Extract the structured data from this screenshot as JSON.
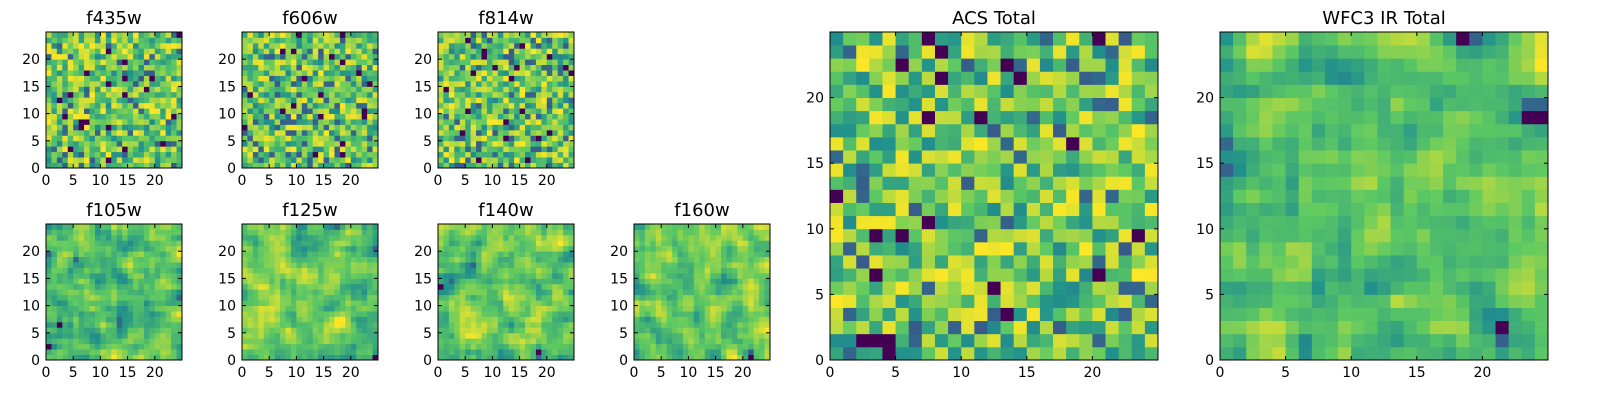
{
  "figure_title": "",
  "colormap": {
    "name": "viridis",
    "stops": [
      "#440154",
      "#3b528b",
      "#21918c",
      "#5ec962",
      "#fde725"
    ]
  },
  "chart_data": [
    {
      "id": "f435w",
      "title": "f435w",
      "type": "heatmap",
      "grid_size": 25,
      "seed": 11,
      "xticks": [
        0,
        5,
        10,
        15,
        20
      ],
      "xtick_labels": [
        "0",
        "5",
        "10",
        "15",
        "20"
      ],
      "yticks": [
        0,
        5,
        10,
        15,
        20
      ],
      "ytick_labels": [
        "0",
        "5",
        "10",
        "15",
        "20"
      ],
      "xlim": [
        0,
        25
      ],
      "ylim": [
        0,
        25
      ],
      "value_range": [
        0,
        1
      ]
    },
    {
      "id": "f606w",
      "title": "f606w",
      "type": "heatmap",
      "grid_size": 25,
      "seed": 23,
      "xticks": [
        0,
        5,
        10,
        15,
        20
      ],
      "xtick_labels": [
        "0",
        "5",
        "10",
        "15",
        "20"
      ],
      "yticks": [
        0,
        5,
        10,
        15,
        20
      ],
      "ytick_labels": [
        "0",
        "5",
        "10",
        "15",
        "20"
      ],
      "xlim": [
        0,
        25
      ],
      "ylim": [
        0,
        25
      ],
      "value_range": [
        0,
        1
      ]
    },
    {
      "id": "f814w",
      "title": "f814w",
      "type": "heatmap",
      "grid_size": 25,
      "seed": 37,
      "xticks": [
        0,
        5,
        10,
        15,
        20
      ],
      "xtick_labels": [
        "0",
        "5",
        "10",
        "15",
        "20"
      ],
      "yticks": [
        0,
        5,
        10,
        15,
        20
      ],
      "ytick_labels": [
        "0",
        "5",
        "10",
        "15",
        "20"
      ],
      "xlim": [
        0,
        25
      ],
      "ylim": [
        0,
        25
      ],
      "value_range": [
        0,
        1
      ]
    },
    {
      "id": "f105w",
      "title": "f105w",
      "type": "heatmap",
      "grid_size": 25,
      "seed": 41,
      "xticks": [
        0,
        5,
        10,
        15,
        20
      ],
      "xtick_labels": [
        "0",
        "5",
        "10",
        "15",
        "20"
      ],
      "yticks": [
        0,
        5,
        10,
        15,
        20
      ],
      "ytick_labels": [
        "0",
        "5",
        "10",
        "15",
        "20"
      ],
      "xlim": [
        0,
        25
      ],
      "ylim": [
        0,
        25
      ],
      "value_range": [
        0,
        1
      ]
    },
    {
      "id": "f125w",
      "title": "f125w",
      "type": "heatmap",
      "grid_size": 25,
      "seed": 53,
      "xticks": [
        0,
        5,
        10,
        15,
        20
      ],
      "xtick_labels": [
        "0",
        "5",
        "10",
        "15",
        "20"
      ],
      "yticks": [
        0,
        5,
        10,
        15,
        20
      ],
      "ytick_labels": [
        "0",
        "5",
        "10",
        "15",
        "20"
      ],
      "xlim": [
        0,
        25
      ],
      "ylim": [
        0,
        25
      ],
      "value_range": [
        0,
        1
      ]
    },
    {
      "id": "f140w",
      "title": "f140w",
      "type": "heatmap",
      "grid_size": 25,
      "seed": 67,
      "xticks": [
        0,
        5,
        10,
        15,
        20
      ],
      "xtick_labels": [
        "0",
        "5",
        "10",
        "15",
        "20"
      ],
      "yticks": [
        0,
        5,
        10,
        15,
        20
      ],
      "ytick_labels": [
        "0",
        "5",
        "10",
        "15",
        "20"
      ],
      "xlim": [
        0,
        25
      ],
      "ylim": [
        0,
        25
      ],
      "value_range": [
        0,
        1
      ]
    },
    {
      "id": "f160w",
      "title": "f160w",
      "type": "heatmap",
      "grid_size": 25,
      "seed": 79,
      "xticks": [
        0,
        5,
        10,
        15,
        20
      ],
      "xtick_labels": [
        "0",
        "5",
        "10",
        "15",
        "20"
      ],
      "yticks": [
        0,
        5,
        10,
        15,
        20
      ],
      "ytick_labels": [
        "0",
        "5",
        "10",
        "15",
        "20"
      ],
      "xlim": [
        0,
        25
      ],
      "ylim": [
        0,
        25
      ],
      "value_range": [
        0,
        1
      ]
    },
    {
      "id": "acs-total",
      "title": "ACS Total",
      "type": "heatmap",
      "grid_size": 25,
      "seed": 97,
      "xticks": [
        0,
        5,
        10,
        15,
        20
      ],
      "xtick_labels": [
        "0",
        "5",
        "10",
        "15",
        "20"
      ],
      "yticks": [
        0,
        5,
        10,
        15,
        20
      ],
      "ytick_labels": [
        "0",
        "5",
        "10",
        "15",
        "20"
      ],
      "xlim": [
        0,
        25
      ],
      "ylim": [
        0,
        25
      ],
      "value_range": [
        0,
        1
      ]
    },
    {
      "id": "wfc3-ir-total",
      "title": "WFC3 IR Total",
      "type": "heatmap",
      "grid_size": 25,
      "seed": 113,
      "xticks": [
        0,
        5,
        10,
        15,
        20
      ],
      "xtick_labels": [
        "0",
        "5",
        "10",
        "15",
        "20"
      ],
      "yticks": [
        0,
        5,
        10,
        15,
        20
      ],
      "ytick_labels": [
        "0",
        "5",
        "10",
        "15",
        "20"
      ],
      "xlim": [
        0,
        25
      ],
      "ylim": [
        0,
        25
      ],
      "value_range": [
        0,
        1
      ]
    }
  ]
}
